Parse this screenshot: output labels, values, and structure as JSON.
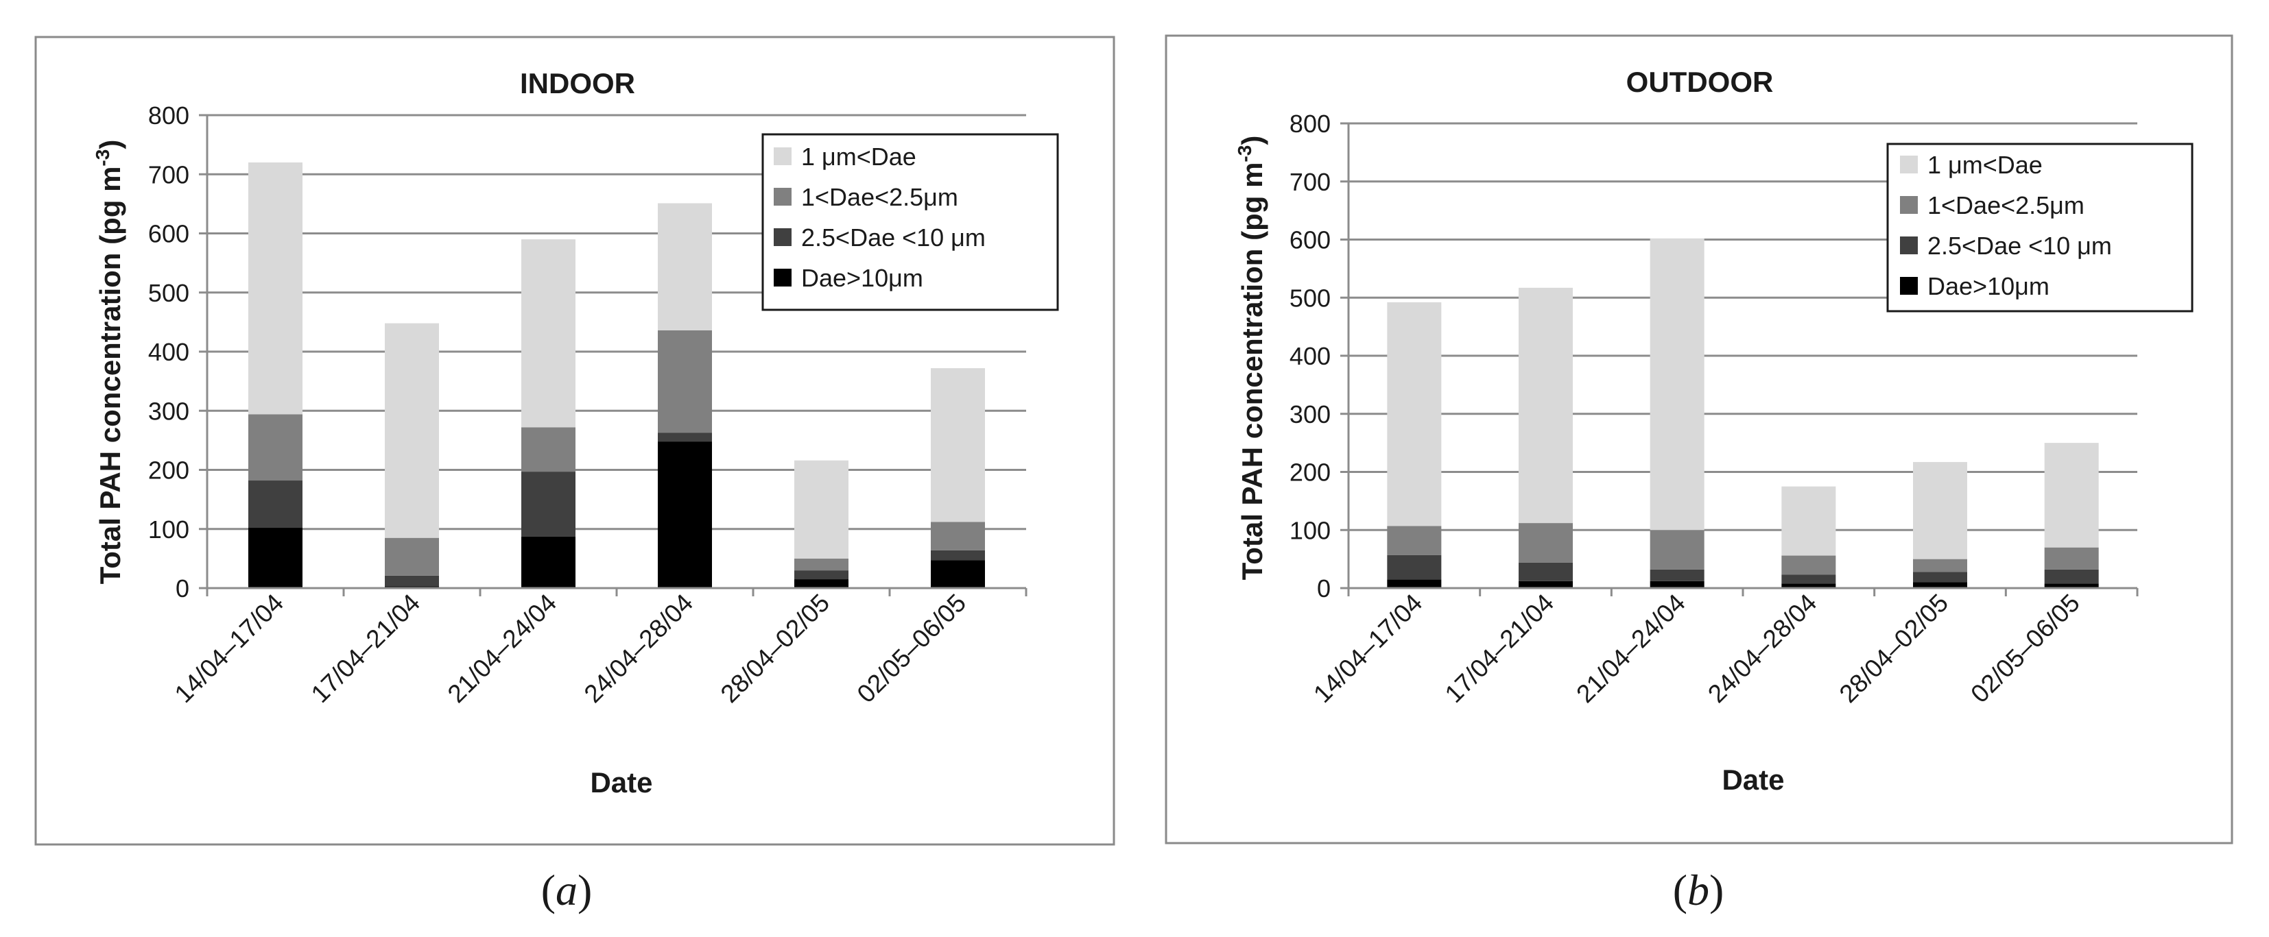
{
  "panels": [
    {
      "label": "(a)",
      "label_letter": "a"
    },
    {
      "label": "(b)",
      "label_letter": "b"
    }
  ],
  "chart_data": [
    {
      "type": "bar",
      "stacked": true,
      "title": "INDOOR",
      "xlabel": "Date",
      "ylabel_main": "Total PAH concentration (pg m",
      "ylabel_sup": "-3",
      "ylabel_close": ")",
      "ylim": [
        0,
        800
      ],
      "yticks": [
        0,
        100,
        200,
        300,
        400,
        500,
        600,
        700,
        800
      ],
      "grid": true,
      "legend_position": "top-right",
      "categories": [
        "14/04–17/04",
        "17/04–21/04",
        "21/04–24/04",
        "24/04–28/04",
        "28/04–02/05",
        "02/05–06/05"
      ],
      "series": [
        {
          "name": "Dae>10μm",
          "color": "#000000",
          "values": [
            102,
            3,
            87,
            248,
            15,
            47
          ]
        },
        {
          "name": "2.5<Dae <10 μm",
          "color": "#404040",
          "values": [
            80,
            18,
            110,
            15,
            15,
            17
          ]
        },
        {
          "name": "1<Dae<2.5μm",
          "color": "#808080",
          "values": [
            112,
            64,
            75,
            173,
            20,
            48
          ]
        },
        {
          "name": "1 μm<Dae",
          "color": "#d9d9d9",
          "values": [
            426,
            363,
            318,
            215,
            166,
            260
          ]
        }
      ],
      "legend_order": [
        3,
        2,
        1,
        0
      ]
    },
    {
      "type": "bar",
      "stacked": true,
      "title": "OUTDOOR",
      "xlabel": "Date",
      "ylabel_main": "Total PAH concentration (pg m",
      "ylabel_sup": "-3",
      "ylabel_close": ")",
      "ylim": [
        0,
        800
      ],
      "yticks": [
        0,
        100,
        200,
        300,
        400,
        500,
        600,
        700,
        800
      ],
      "grid": true,
      "legend_position": "top-right",
      "categories": [
        "14/04–17/04",
        "17/04–21/04",
        "21/04–24/04",
        "24/04–28/04",
        "28/04–02/05",
        "02/05–06/05"
      ],
      "series": [
        {
          "name": "Dae>10μm",
          "color": "#000000",
          "values": [
            15,
            12,
            12,
            8,
            10,
            8
          ]
        },
        {
          "name": "2.5<Dae <10 μm",
          "color": "#404040",
          "values": [
            42,
            32,
            20,
            15,
            18,
            24
          ]
        },
        {
          "name": "1<Dae<2.5μm",
          "color": "#808080",
          "values": [
            50,
            68,
            68,
            33,
            22,
            38
          ]
        },
        {
          "name": "1 μm<Dae",
          "color": "#d9d9d9",
          "values": [
            385,
            405,
            502,
            119,
            167,
            180
          ]
        }
      ],
      "legend_order": [
        3,
        2,
        1,
        0
      ]
    }
  ]
}
